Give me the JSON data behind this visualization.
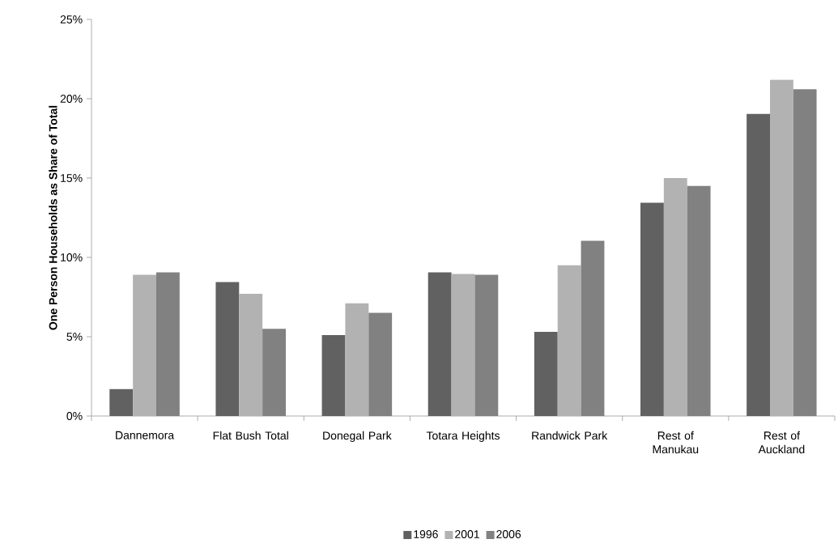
{
  "chart_data": {
    "type": "bar",
    "ylabel": "One Person Households as Share of Total",
    "categories": [
      "Dannemora",
      "Flat Bush Total",
      "Donegal Park",
      "Totara Heights",
      "Randwick Park",
      "Rest of Manukau",
      "Rest of Auckland"
    ],
    "series": [
      {
        "name": "1996",
        "color": "#616161",
        "values": [
          1.7,
          8.45,
          5.1,
          9.05,
          5.3,
          13.45,
          19.05
        ]
      },
      {
        "name": "2001",
        "color": "#b2b2b2",
        "values": [
          8.9,
          7.7,
          7.1,
          8.95,
          9.5,
          15.0,
          21.2
        ]
      },
      {
        "name": "2006",
        "color": "#818181",
        "values": [
          9.05,
          5.5,
          6.5,
          8.9,
          11.05,
          14.5,
          20.6
        ]
      }
    ],
    "ylim": [
      0,
      25
    ],
    "yticks": [
      {
        "value": 0,
        "label": "0%"
      },
      {
        "value": 5,
        "label": "5%"
      },
      {
        "value": 10,
        "label": "10%"
      },
      {
        "value": 15,
        "label": "15%"
      },
      {
        "value": 20,
        "label": "20%"
      },
      {
        "value": 25,
        "label": "25%"
      }
    ],
    "grid": false,
    "legend": "bottom"
  }
}
